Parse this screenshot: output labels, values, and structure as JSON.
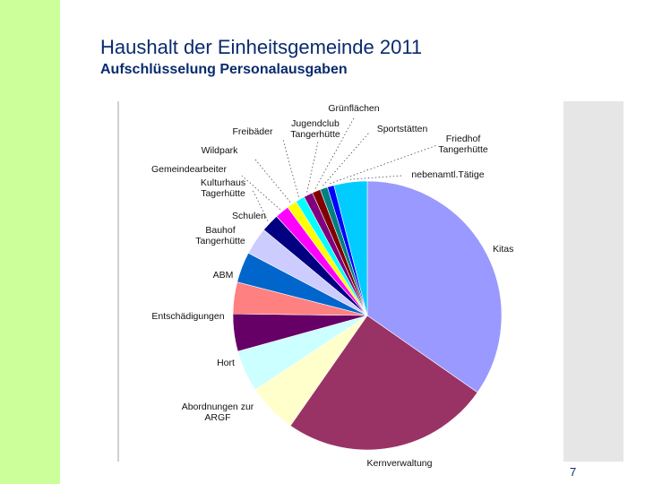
{
  "slide": {
    "title": "Haushalt der Einheitsgemeinde 2011",
    "subtitle": "Aufschlüsselung Personalausgaben",
    "page_number": "7",
    "accent_color": "#ccff99",
    "text_color": "#0a2b6e"
  },
  "chart_data": {
    "type": "pie",
    "title": "",
    "start_angle_deg": 0,
    "unit": "approx. % share (estimated from slice angles)",
    "slices": [
      {
        "label": "Kitas",
        "lines": [
          "Kitas"
        ],
        "value": 34.7,
        "color": "#9999ff"
      },
      {
        "label": "Kernverwaltung",
        "lines": [
          "Kernverwaltung"
        ],
        "value": 25.0,
        "color": "#993366"
      },
      {
        "label": "Abordnungen zur ARGF",
        "lines": [
          "Abordnungen zur",
          "ARGF"
        ],
        "value": 6.0,
        "color": "#ffffcc"
      },
      {
        "label": "Hort",
        "lines": [
          "Hort"
        ],
        "value": 5.0,
        "color": "#ccffff"
      },
      {
        "label": "Entschädigungen",
        "lines": [
          "Entschädigungen"
        ],
        "value": 4.5,
        "color": "#660066"
      },
      {
        "label": "ABM",
        "lines": [
          "ABM"
        ],
        "value": 3.8,
        "color": "#ff8080"
      },
      {
        "label": "Bauhof Tangerhütte",
        "lines": [
          "Bauhof",
          "Tangerhütte"
        ],
        "value": 3.7,
        "color": "#0066cc"
      },
      {
        "label": "Schulen",
        "lines": [
          "Schulen"
        ],
        "value": 3.3,
        "color": "#ccccff"
      },
      {
        "label": "Kulturhaus Tagerhütte",
        "lines": [
          "Kulturhaus",
          "Tagerhütte"
        ],
        "value": 2.2,
        "color": "#000080"
      },
      {
        "label": "Gemeindearbeiter",
        "lines": [
          "Gemeindearbeiter"
        ],
        "value": 1.7,
        "color": "#ff00ff"
      },
      {
        "label": "Wildpark",
        "lines": [
          "Wildpark"
        ],
        "value": 1.2,
        "color": "#ffff00"
      },
      {
        "label": "Freibäder",
        "lines": [
          "Freibäder"
        ],
        "value": 1.1,
        "color": "#00ffff"
      },
      {
        "label": "Jugendclub Tangerhütte",
        "lines": [
          "Jugendclub",
          "Tangerhütte"
        ],
        "value": 1.1,
        "color": "#800080"
      },
      {
        "label": "Grünflächen",
        "lines": [
          "Grünflächen"
        ],
        "value": 1.0,
        "color": "#800000"
      },
      {
        "label": "Sportstätten",
        "lines": [
          "Sportstätten"
        ],
        "value": 0.9,
        "color": "#008080"
      },
      {
        "label": "Friedhof Tangerhütte",
        "lines": [
          "Friedhof",
          "Tangerhütte"
        ],
        "value": 0.8,
        "color": "#0000ff"
      },
      {
        "label": "nebenamtl.Tätige",
        "lines": [
          "nebenamtl.Tätige"
        ],
        "value": 4.0,
        "color": "#00ccff"
      }
    ]
  }
}
